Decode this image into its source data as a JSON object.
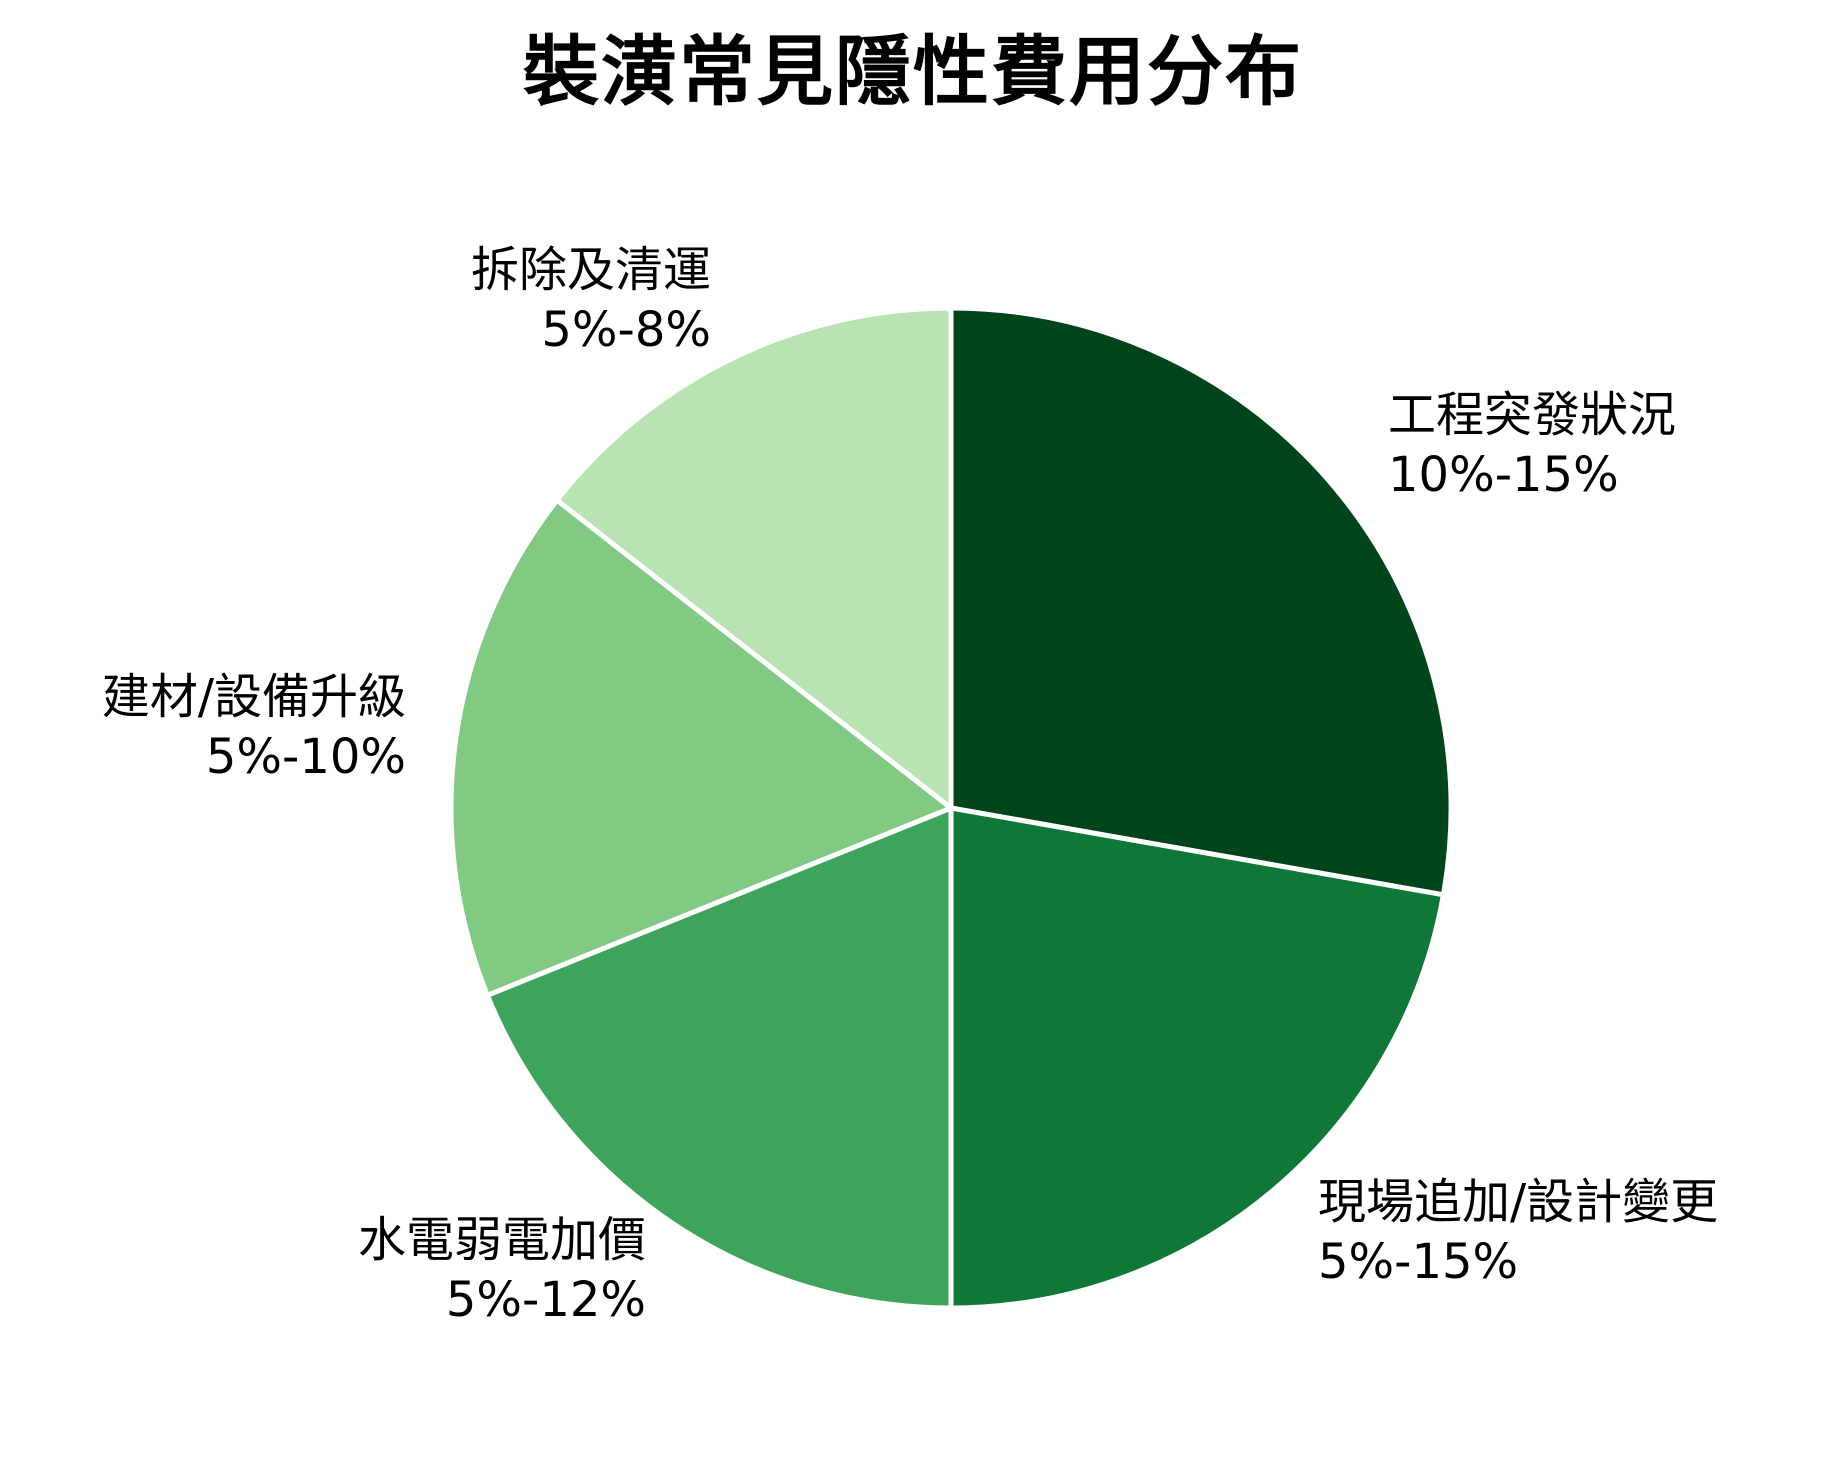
{
  "chart_data": {
    "type": "pie",
    "title": "裝潢常見隱性費用分布",
    "start_angle_deg": 0,
    "direction": "clockwise",
    "categories": [
      "工程突發狀況",
      "現場追加/設計變更",
      "水電弱電加價",
      "建材/設備升級",
      "拆除及清運"
    ],
    "ranges": [
      "10%-15%",
      "5%-15%",
      "5%-12%",
      "5%-10%",
      "5%-8%"
    ],
    "values": [
      12.5,
      10,
      8.5,
      7.5,
      6.5
    ],
    "colors": [
      "#00441b",
      "#0f7838",
      "#3fa45b",
      "#82c984",
      "#b9e3b2"
    ],
    "legend": "none (labels placed outside slices)"
  },
  "labels": [
    {
      "name": "工程突發狀況",
      "range": "10%-15%"
    },
    {
      "name": "現場追加/設計變更",
      "range": "5%-15%"
    },
    {
      "name": "水電弱電加價",
      "range": "5%-12%"
    },
    {
      "name": "建材/設備升級",
      "range": "5%-10%"
    },
    {
      "name": "拆除及清運",
      "range": "5%-8%"
    }
  ]
}
